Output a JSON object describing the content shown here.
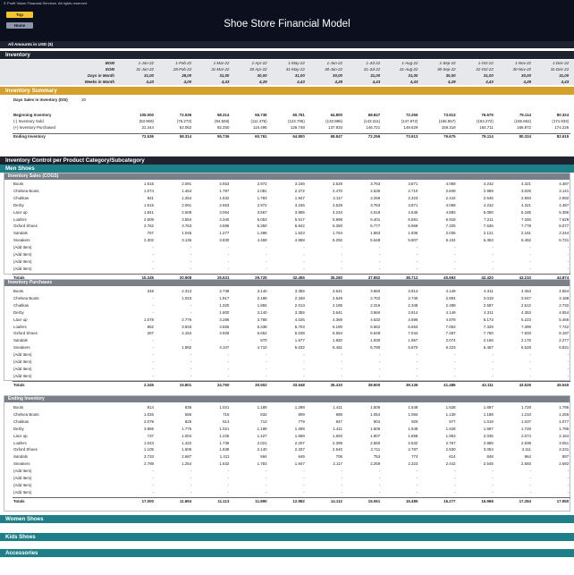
{
  "header": {
    "copyright": "© Profit Vision Financial Services. All rights reserved.",
    "top_button": "Top",
    "home_button": "Home",
    "title": "Shoe Store Financial Model",
    "currency_note": "All Amounts in  USD ($)"
  },
  "inventory": {
    "section_title": "Inventory",
    "period_labels": {
      "bom": "BOM",
      "eom": "EOM",
      "days": "Days in Month",
      "weeks": "Weeks in Month"
    },
    "bom": [
      "1-Jan-22",
      "1-Feb-22",
      "1-Mar-22",
      "1-Apr-22",
      "1-May-22",
      "1-Jun-22",
      "1-Jul-22",
      "1-Aug-22",
      "1-Sep-22",
      "1-Oct-22",
      "1-Nov-22",
      "1-Dec-22"
    ],
    "eom": [
      "31-Jan-22",
      "28-Feb-22",
      "31-Mar-22",
      "30-Apr-22",
      "31-May-22",
      "30-Jun-22",
      "31-Jul-22",
      "31-Aug-22",
      "30-Sep-22",
      "31-Oct-22",
      "30-Nov-22",
      "31-Dec-22"
    ],
    "days": [
      "31,00",
      "28,00",
      "31,00",
      "30,00",
      "31,00",
      "30,00",
      "31,00",
      "31,00",
      "30,00",
      "31,00",
      "30,00",
      "31,00"
    ],
    "weeks": [
      "4,43",
      "4,00",
      "4,43",
      "4,29",
      "4,43",
      "4,29",
      "4,43",
      "4,43",
      "4,29",
      "4,43",
      "4,29",
      "4,43"
    ]
  },
  "summary": {
    "section_title": "Inventory Summary",
    "dsi_label": "Days Sales in Inventory (DSI)",
    "dsi_value": "20",
    "rows": [
      {
        "label": "Beginning Inventory",
        "values": [
          "105.000",
          "72.536",
          "58.314",
          "55.736",
          "60.761",
          "64.800",
          "68.847",
          "72.256",
          "73.913",
          "76.675",
          "79.114",
          "80.324"
        ]
      },
      {
        "label": "(-) Inventory Sold",
        "values": [
          "(53.909)",
          "(76.273)",
          "(94.828)",
          "(111.476)",
          "(122.706)",
          "(133.886)",
          "(143.311)",
          "(147.972)",
          "(155.557)",
          "(162.272)",
          "(165.662)",
          "(171.933)"
        ]
      },
      {
        "label": "(+) Inventory Purchased",
        "values": [
          "21.444",
          "62.052",
          "92.250",
          "116.495",
          "126.748",
          "137.933",
          "146.721",
          "149.629",
          "158.319",
          "164.711",
          "166.872",
          "174.226"
        ]
      },
      {
        "label": "Ending Inventory",
        "values": [
          "72.536",
          "58.314",
          "55.736",
          "60.761",
          "64.800",
          "68.847",
          "72.256",
          "73.913",
          "76.675",
          "79.114",
          "80.324",
          "82.615"
        ]
      }
    ]
  },
  "control": {
    "section_title": "Inventory Control per Product Category/Subcategory",
    "men_title": "Men Shoes",
    "sales": {
      "title": "Inventory Sales (COGS)",
      "rows": [
        {
          "label": "Boots",
          "values": [
            "1.515",
            "2.091",
            "2.553",
            "2.972",
            "3.246",
            "3.528",
            "3.763",
            "3.871",
            "4.069",
            "4.242",
            "4.321",
            "4.487"
          ]
        },
        {
          "label": "Chelsea Boots",
          "values": [
            "1.074",
            "1.464",
            "1.787",
            "2.081",
            "2.272",
            "2.470",
            "2.636",
            "2.710",
            "2.849",
            "2.969",
            "3.025",
            "3.141"
          ]
        },
        {
          "label": "Chukkas",
          "values": [
            "921",
            "1.254",
            "1.532",
            "1.783",
            "1.947",
            "2.117",
            "2.259",
            "2.323",
            "2.442",
            "2.545",
            "2.593",
            "2.692"
          ]
        },
        {
          "label": "Derby",
          "values": [
            "1.515",
            "2.091",
            "2.553",
            "2.972",
            "3.246",
            "3.528",
            "3.763",
            "3.871",
            "4.069",
            "4.242",
            "4.321",
            "4.487"
          ]
        },
        {
          "label": "Lace up",
          "values": [
            "1.841",
            "2.509",
            "3.064",
            "3.567",
            "3.895",
            "4.234",
            "4.518",
            "4.645",
            "4.883",
            "5.090",
            "5.185",
            "5.385"
          ]
        },
        {
          "label": "Loafers",
          "values": [
            "2.609",
            "3.554",
            "4.340",
            "5.053",
            "5.517",
            "5.998",
            "6.401",
            "6.581",
            "6.918",
            "7.211",
            "7.346",
            "7.629"
          ]
        },
        {
          "label": "Oxford Shoes",
          "values": [
            "2.762",
            "3.763",
            "4.596",
            "5.350",
            "5.842",
            "6.350",
            "6.777",
            "6.968",
            "7.325",
            "7.636",
            "7.778",
            "8.077"
          ]
        },
        {
          "label": "Sandals",
          "values": [
            "767",
            "1.045",
            "1.277",
            "1.486",
            "1.623",
            "1.764",
            "1.883",
            "1.936",
            "2.035",
            "2.121",
            "2.161",
            "2.244"
          ]
        },
        {
          "label": "Sneakers",
          "values": [
            "2.302",
            "3.136",
            "3.830",
            "4.459",
            "4.868",
            "5.292",
            "5.648",
            "5.807",
            "6.104",
            "6.363",
            "6.482",
            "6.731"
          ]
        },
        {
          "label": "(Add Item)",
          "values": [
            "-",
            "-",
            "-",
            "-",
            "-",
            "-",
            "-",
            "-",
            "-",
            "-",
            "-",
            "-"
          ]
        },
        {
          "label": "(Add Item)",
          "values": [
            "-",
            "-",
            "-",
            "-",
            "-",
            "-",
            "-",
            "-",
            "-",
            "-",
            "-",
            "-"
          ]
        },
        {
          "label": "(Add Item)",
          "values": [
            "-",
            "-",
            "-",
            "-",
            "-",
            "-",
            "-",
            "-",
            "-",
            "-",
            "-",
            "-"
          ]
        },
        {
          "label": "(Add Item)",
          "values": [
            "-",
            "-",
            "-",
            "-",
            "-",
            "-",
            "-",
            "-",
            "-",
            "-",
            "-",
            "-"
          ]
        }
      ],
      "total": {
        "label": "Totals",
        "values": [
          "15.345",
          "20.908",
          "25.531",
          "29.725",
          "32.455",
          "35.280",
          "37.652",
          "38.712",
          "40.693",
          "42.420",
          "43.210",
          "44.874"
        ]
      }
    },
    "purchases": {
      "title": "Inventory Purchases",
      "rows": [
        {
          "label": "Boots",
          "values": [
            "348",
            "2.313",
            "2.738",
            "3.140",
            "3.355",
            "3.641",
            "3.860",
            "3.914",
            "4.149",
            "4.311",
            "4.353",
            "4.554"
          ]
        },
        {
          "label": "Chelsea Boots",
          "values": [
            "-",
            "1.023",
            "1.917",
            "2.198",
            "2.348",
            "2.549",
            "2.702",
            "2.740",
            "2.904",
            "3.018",
            "3.047",
            "3.188"
          ]
        },
        {
          "label": "Chukkas",
          "values": [
            "-",
            "-",
            "1.320",
            "1.884",
            "2.013",
            "2.185",
            "2.316",
            "2.348",
            "2.489",
            "2.587",
            "2.612",
            "2.732"
          ]
        },
        {
          "label": "Derby",
          "values": [
            "-",
            "-",
            "1.800",
            "3.140",
            "3.355",
            "3.641",
            "3.860",
            "3.914",
            "4.149",
            "4.311",
            "4.353",
            "4.554"
          ]
        },
        {
          "label": "Lace up",
          "values": [
            "1.078",
            "2.776",
            "3.286",
            "3.768",
            "4.026",
            "4.369",
            "4.632",
            "4.696",
            "4.978",
            "5.173",
            "5.223",
            "5.465"
          ]
        },
        {
          "label": "Loafers",
          "values": [
            "852",
            "3.933",
            "4.655",
            "5.338",
            "5.703",
            "6.190",
            "6.562",
            "6.653",
            "7.053",
            "7.329",
            "7.399",
            "7.742"
          ]
        },
        {
          "label": "Oxford Shoes",
          "values": [
            "267",
            "4.164",
            "4.928",
            "5.652",
            "6.039",
            "6.554",
            "6.948",
            "7.044",
            "7.467",
            "7.760",
            "7.833",
            "8.197"
          ]
        },
        {
          "label": "Sandals",
          "values": [
            "-",
            "-",
            "-",
            "870",
            "1.677",
            "1.820",
            "1.930",
            "1.957",
            "2.074",
            "2.156",
            "2.176",
            "2.277"
          ]
        },
        {
          "label": "Sneakers",
          "values": [
            "-",
            "1.592",
            "4.107",
            "4.710",
            "5.032",
            "5.461",
            "5.790",
            "5.870",
            "6.223",
            "6.467",
            "6.529",
            "6.831"
          ]
        },
        {
          "label": "(Add Item)",
          "values": [
            "-",
            "-",
            "-",
            "-",
            "-",
            "-",
            "-",
            "-",
            "-",
            "-",
            "-",
            "-"
          ]
        },
        {
          "label": "(Add Item)",
          "values": [
            "-",
            "-",
            "-",
            "-",
            "-",
            "-",
            "-",
            "-",
            "-",
            "-",
            "-",
            "-"
          ]
        },
        {
          "label": "(Add Item)",
          "values": [
            "-",
            "-",
            "-",
            "-",
            "-",
            "-",
            "-",
            "-",
            "-",
            "-",
            "-",
            "-"
          ]
        },
        {
          "label": "(Add Item)",
          "values": [
            "-",
            "-",
            "-",
            "-",
            "-",
            "-",
            "-",
            "-",
            "-",
            "-",
            "-",
            "-"
          ]
        }
      ],
      "total": {
        "label": "Totals",
        "values": [
          "2.345",
          "15.801",
          "24.750",
          "30.502",
          "33.548",
          "36.410",
          "38.600",
          "39.136",
          "41.486",
          "43.111",
          "43.526",
          "45.540"
        ]
      }
    },
    "ending": {
      "title": "Ending Inventory",
      "rows": [
        {
          "label": "Boots",
          "values": [
            "814",
            "836",
            "1.021",
            "1.189",
            "1.298",
            "1.411",
            "1.506",
            "1.548",
            "1.628",
            "1.697",
            "1.728",
            "1.795"
          ]
        },
        {
          "label": "Chelsea Boots",
          "values": [
            "1.026",
            "585",
            "715",
            "832",
            "909",
            "988",
            "1.054",
            "1.084",
            "1.139",
            "1.188",
            "1.210",
            "1.256"
          ]
        },
        {
          "label": "Chukkas",
          "values": [
            "2.079",
            "825",
            "613",
            "713",
            "779",
            "847",
            "904",
            "929",
            "977",
            "1.018",
            "1.037",
            "1.077"
          ]
        },
        {
          "label": "Derby",
          "values": [
            "3.866",
            "1.775",
            "1.021",
            "1.189",
            "1.298",
            "1.411",
            "1.506",
            "1.548",
            "1.628",
            "1.697",
            "1.728",
            "1.795"
          ]
        },
        {
          "label": "Lace up",
          "values": [
            "737",
            "1.004",
            "1.225",
            "1.427",
            "1.558",
            "1.693",
            "1.807",
            "1.858",
            "1.953",
            "2.036",
            "2.074",
            "2.154"
          ]
        },
        {
          "label": "Loafers",
          "values": [
            "1.043",
            "1.422",
            "1.736",
            "2.021",
            "2.207",
            "2.399",
            "2.560",
            "2.632",
            "2.767",
            "2.885",
            "2.938",
            "3.051"
          ]
        },
        {
          "label": "Oxford Shoes",
          "values": [
            "1.105",
            "1.505",
            "1.838",
            "2.140",
            "2.337",
            "2.540",
            "2.711",
            "2.787",
            "2.930",
            "3.054",
            "3.111",
            "3.231"
          ]
        },
        {
          "label": "Sandals",
          "values": [
            "3.733",
            "2.687",
            "1.411",
            "594",
            "649",
            "706",
            "753",
            "774",
            "814",
            "848",
            "864",
            "897"
          ]
        },
        {
          "label": "Sneakers",
          "values": [
            "2.798",
            "1.254",
            "1.532",
            "1.783",
            "1.947",
            "2.117",
            "2.259",
            "2.323",
            "2.442",
            "2.545",
            "2.593",
            "2.692"
          ]
        },
        {
          "label": "(Add Item)",
          "values": [
            "-",
            "-",
            "-",
            "-",
            "-",
            "-",
            "-",
            "-",
            "-",
            "-",
            "-",
            "-"
          ]
        },
        {
          "label": "(Add Item)",
          "values": [
            "-",
            "-",
            "-",
            "-",
            "-",
            "-",
            "-",
            "-",
            "-",
            "-",
            "-",
            "-"
          ]
        },
        {
          "label": "(Add Item)",
          "values": [
            "-",
            "-",
            "-",
            "-",
            "-",
            "-",
            "-",
            "-",
            "-",
            "-",
            "-",
            "-"
          ]
        },
        {
          "label": "(Add Item)",
          "values": [
            "-",
            "-",
            "-",
            "-",
            "-",
            "-",
            "-",
            "-",
            "-",
            "-",
            "-",
            "-"
          ]
        }
      ],
      "total": {
        "label": "Totals",
        "values": [
          "17.000",
          "11.894",
          "11.113",
          "11.890",
          "12.982",
          "14.112",
          "15.061",
          "15.485",
          "16.277",
          "16.968",
          "17.284",
          "17.950"
        ]
      }
    },
    "women_title": "Women Shoes",
    "kids_title": "Kids Shoes",
    "accessories_title": "Accessories"
  }
}
